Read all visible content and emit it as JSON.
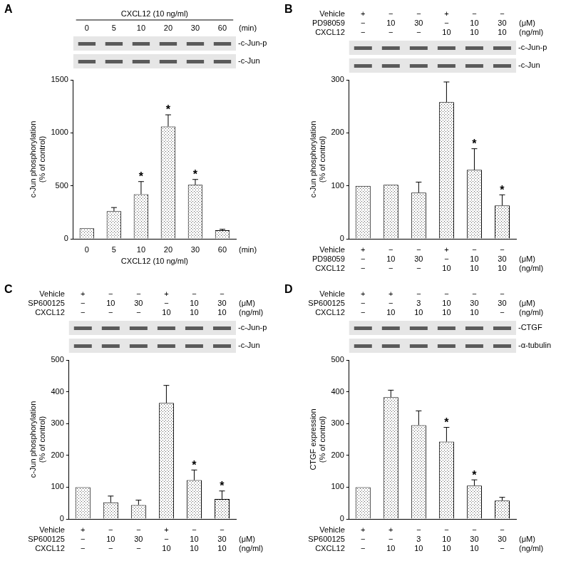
{
  "chart_data": [
    {
      "panel": "A",
      "type": "bar",
      "header": "CXCL12 (10 ng/ml)",
      "conditions": [
        {
          "labels": [
            "0",
            "5",
            "10",
            "20",
            "30",
            "60"
          ],
          "unit": "(min)"
        }
      ],
      "footer": "CXCL12 (10 ng/ml)",
      "blot_labels": [
        "-c-Jun-p",
        "-c-Jun"
      ],
      "y_label": [
        "c-Jun phosphorylation",
        "(% of control)"
      ],
      "values": [
        100,
        260,
        420,
        1060,
        510,
        80
      ],
      "errors": [
        0,
        35,
        120,
        110,
        50,
        10
      ],
      "significant": [
        false,
        false,
        true,
        true,
        true,
        false
      ],
      "significance_label": "*",
      "color": "#555555",
      "ylim": [
        0,
        1500
      ],
      "yticks": [
        0,
        500,
        1000,
        1500
      ],
      "grid": false,
      "tick_labels": "y"
    },
    {
      "panel": "B",
      "type": "bar",
      "conditions": [
        {
          "name": "Vehicle",
          "labels": [
            "+",
            "−",
            "−",
            "+",
            "−",
            "−"
          ]
        },
        {
          "name": "PD98059",
          "labels": [
            "−",
            "10",
            "30",
            "−",
            "10",
            "30"
          ],
          "unit": "(μM)"
        },
        {
          "name": "CXCL12",
          "labels": [
            "−",
            "−",
            "−",
            "10",
            "10",
            "10"
          ],
          "unit": "(ng/ml)"
        }
      ],
      "blot_labels": [
        "-c-Jun-p",
        "-c-Jun"
      ],
      "y_label": [
        "c-Jun phosphorylation",
        "(% of control)"
      ],
      "values": [
        100,
        102,
        87,
        258,
        130,
        63
      ],
      "errors": [
        0,
        0,
        20,
        38,
        40,
        20
      ],
      "significant": [
        false,
        false,
        false,
        false,
        true,
        true
      ],
      "significance_label": "*",
      "color": "#555555",
      "ylim": [
        0,
        300
      ],
      "yticks": [
        0,
        100,
        200,
        300
      ],
      "grid": false,
      "tick_labels": "y"
    },
    {
      "panel": "C",
      "type": "bar",
      "conditions": [
        {
          "name": "Vehicle",
          "labels": [
            "+",
            "−",
            "−",
            "+",
            "−",
            "−"
          ]
        },
        {
          "name": "SP600125",
          "labels": [
            "−",
            "10",
            "30",
            "−",
            "10",
            "30"
          ],
          "unit": "(μM)"
        },
        {
          "name": "CXCL12",
          "labels": [
            "−",
            "−",
            "−",
            "10",
            "10",
            "10"
          ],
          "unit": "(ng/ml)"
        }
      ],
      "blot_labels": [
        "-c-Jun-p",
        "-c-Jun"
      ],
      "y_label": [
        "c-Jun phosphorylation",
        "(% of control)"
      ],
      "values": [
        100,
        52,
        44,
        365,
        122,
        63
      ],
      "errors": [
        0,
        20,
        15,
        55,
        32,
        25
      ],
      "significant": [
        false,
        false,
        false,
        false,
        true,
        true
      ],
      "significance_label": "*",
      "color": "#555555",
      "ylim": [
        0,
        500
      ],
      "yticks": [
        0,
        100,
        200,
        300,
        400,
        500
      ],
      "grid": false,
      "tick_labels": "y"
    },
    {
      "panel": "D",
      "type": "bar",
      "conditions": [
        {
          "name": "Vehicle",
          "labels": [
            "+",
            "+",
            "−",
            "−",
            "−",
            "−"
          ]
        },
        {
          "name": "SP600125",
          "labels": [
            "−",
            "−",
            "3",
            "10",
            "30",
            "30"
          ],
          "unit": "(μM)"
        },
        {
          "name": "CXCL12",
          "labels": [
            "−",
            "10",
            "10",
            "10",
            "10",
            "−"
          ],
          "unit": "(ng/ml)"
        }
      ],
      "blot_labels": [
        "-CTGF",
        "-α-tubulin"
      ],
      "y_label": [
        "CTGF expression",
        "(% of control)"
      ],
      "values": [
        100,
        383,
        295,
        243,
        105,
        58
      ],
      "errors": [
        0,
        22,
        45,
        45,
        18,
        10
      ],
      "significant": [
        false,
        false,
        false,
        true,
        true,
        false
      ],
      "significance_label": "*",
      "color": "#555555",
      "ylim": [
        0,
        500
      ],
      "yticks": [
        0,
        100,
        200,
        300,
        400,
        500
      ],
      "grid": false,
      "tick_labels": "y"
    }
  ]
}
